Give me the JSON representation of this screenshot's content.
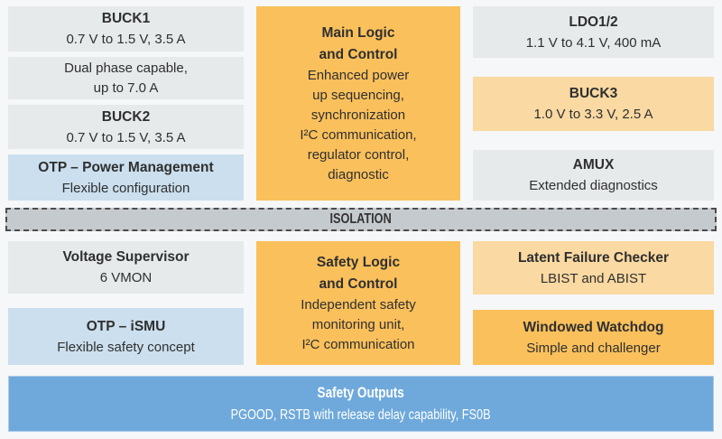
{
  "colors": {
    "background": "#F5F7F8",
    "gray_box": "#E6EAEB",
    "light_blue_box": "#CBDFEE",
    "orange_box": "#FAC05C",
    "light_orange_box": "#FAD9A2",
    "blue_bar": "#6FA9DB",
    "isolation_bar": "#C5CACE",
    "isolation_border": "#4C4C4C",
    "text_dark": "#2F2F2F",
    "text_white": "#FFFFFF"
  },
  "top": {
    "left_col": [
      {
        "title": "BUCK1",
        "subtitle": "0.7 V to 1.5 V, 3.5 A"
      },
      {
        "line1": "Dual phase capable,",
        "line2": "up to 7.0 A"
      },
      {
        "title": "BUCK2",
        "subtitle": "0.7 V to 1.5 V, 3.5 A"
      },
      {
        "title": "OTP – Power Management",
        "subtitle": "Flexible configuration"
      }
    ],
    "center": {
      "title_line1": "Main Logic",
      "title_line2": "and Control",
      "body": [
        "Enhanced power",
        "up sequencing,",
        "synchronization",
        "I²C communication,",
        "regulator control,",
        "diagnostic"
      ]
    },
    "right_col": [
      {
        "title": "LDO1/2",
        "subtitle": "1.1 V to 4.1 V, 400 mA"
      },
      {
        "title": "BUCK3",
        "subtitle": "1.0 V to 3.3 V, 2.5 A"
      },
      {
        "title": "AMUX",
        "subtitle": "Extended diagnostics"
      }
    ]
  },
  "isolation": {
    "label": "ISOLATION"
  },
  "bottom": {
    "left_col": [
      {
        "title": "Voltage Supervisor",
        "subtitle": "6 VMON"
      },
      {
        "title": "OTP – iSMU",
        "subtitle": "Flexible safety concept"
      }
    ],
    "center": {
      "title_line1": "Safety Logic",
      "title_line2": "and Control",
      "body": [
        "Independent safety",
        "monitoring unit,",
        "I²C communication"
      ]
    },
    "right_col": [
      {
        "title": "Latent Failure Checker",
        "subtitle": "LBIST and ABIST"
      },
      {
        "title": "Windowed Watchdog",
        "subtitle": "Simple and challenger"
      }
    ]
  },
  "footer": {
    "title": "Safety Outputs",
    "subtitle": "PGOOD, RSTB with release delay capability, FS0B"
  }
}
